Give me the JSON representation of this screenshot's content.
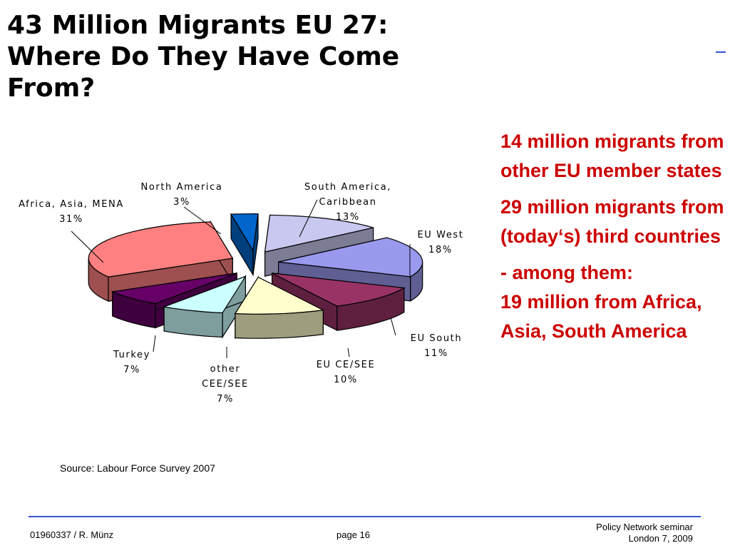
{
  "title": {
    "line1": "43 Million Migrants EU 27:",
    "line2": "Where Do They Have Come",
    "line3": "From?"
  },
  "chart_data": {
    "type": "pie",
    "title": "",
    "slices": [
      {
        "name_lines": [
          "South America,",
          "Caribbean"
        ],
        "pct_label": "13%",
        "value": 13,
        "color": "#c8c8f0"
      },
      {
        "name_lines": [
          "EU West"
        ],
        "pct_label": "18%",
        "value": 18,
        "color": "#9999ee"
      },
      {
        "name_lines": [
          "EU South"
        ],
        "pct_label": "11%",
        "value": 11,
        "color": "#993366"
      },
      {
        "name_lines": [
          "EU CE/SEE"
        ],
        "pct_label": "10%",
        "value": 10,
        "color": "#ffffcc"
      },
      {
        "name_lines": [
          "other",
          "CEE/SEE"
        ],
        "pct_label": "7%",
        "value": 7,
        "color": "#ccffff"
      },
      {
        "name_lines": [
          "Turkey"
        ],
        "pct_label": "7%",
        "value": 7,
        "color": "#660066"
      },
      {
        "name_lines": [
          "Africa, Asia, MENA"
        ],
        "pct_label": "31%",
        "value": 31,
        "color": "#ff8080"
      },
      {
        "name_lines": [
          "North America"
        ],
        "pct_label": "3%",
        "value": 3,
        "color": "#0066cc"
      }
    ]
  },
  "side_text": {
    "para1": "14 million migrants from other EU member states",
    "para2": "29 million migrants from (today‘s) third countries",
    "para3_line1": "- among them:",
    "para3_line2": "19 million from Africa, Asia, South America"
  },
  "source": "Source: Labour Force Survey 2007",
  "footer": {
    "id": "01960337 / R. Münz",
    "page": "page 16",
    "event_line1": "Policy Network seminar",
    "event_line2": "London 7, 2009"
  },
  "colors": {
    "accent_text": "#cc0000",
    "rule": "#3355cc"
  }
}
